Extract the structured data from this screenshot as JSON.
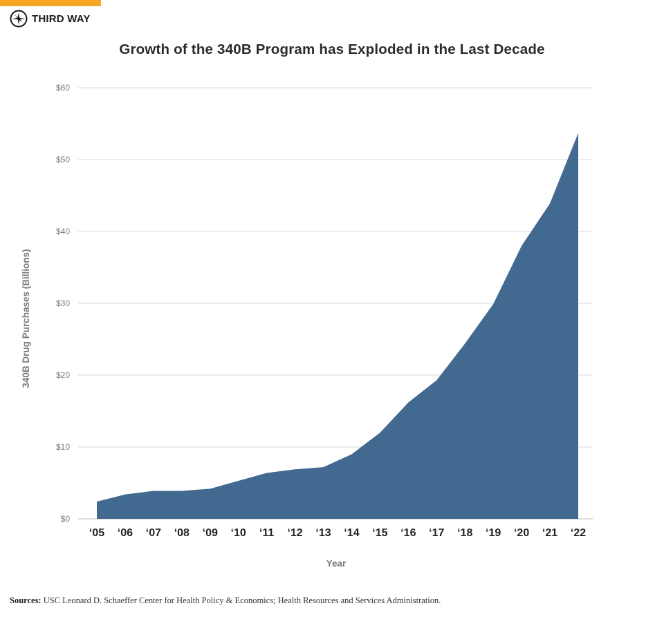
{
  "brand": {
    "name": "THIRD WAY",
    "logo_icon": "compass-star-icon",
    "accent_color": "#f5a623"
  },
  "chart_data": {
    "type": "area",
    "title": "Growth of the 340B Program has Exploded in the Last Decade",
    "xlabel": "Year",
    "ylabel": "340B Drug Purchases (Billions)",
    "categories": [
      "‘05",
      "‘06",
      "‘07",
      "‘08",
      "‘09",
      "‘10",
      "‘11",
      "‘12",
      "‘13",
      "‘14",
      "‘15",
      "‘16",
      "‘17",
      "‘18",
      "‘19",
      "‘20",
      "‘21",
      "‘22"
    ],
    "series": [
      {
        "values": [
          2.4,
          3.4,
          3.9,
          3.9,
          4.2,
          5.3,
          6.4,
          6.9,
          7.2,
          9.0,
          12.0,
          16.2,
          19.3,
          24.4,
          29.9,
          38.0,
          43.9,
          53.7
        ],
        "color": "#426990"
      }
    ],
    "ylim": [
      0,
      60
    ],
    "yticks": [
      0,
      10,
      20,
      30,
      40,
      50,
      60
    ],
    "ytick_labels": [
      "$0",
      "$10",
      "$20",
      "$30",
      "$40",
      "$50",
      "$60"
    ],
    "grid": true,
    "legend": "none"
  },
  "sources": {
    "label": "Sources:",
    "text": "USC Leonard D. Schaeffer Center for Health Policy & Economics; Health Resources and Services Administration."
  }
}
